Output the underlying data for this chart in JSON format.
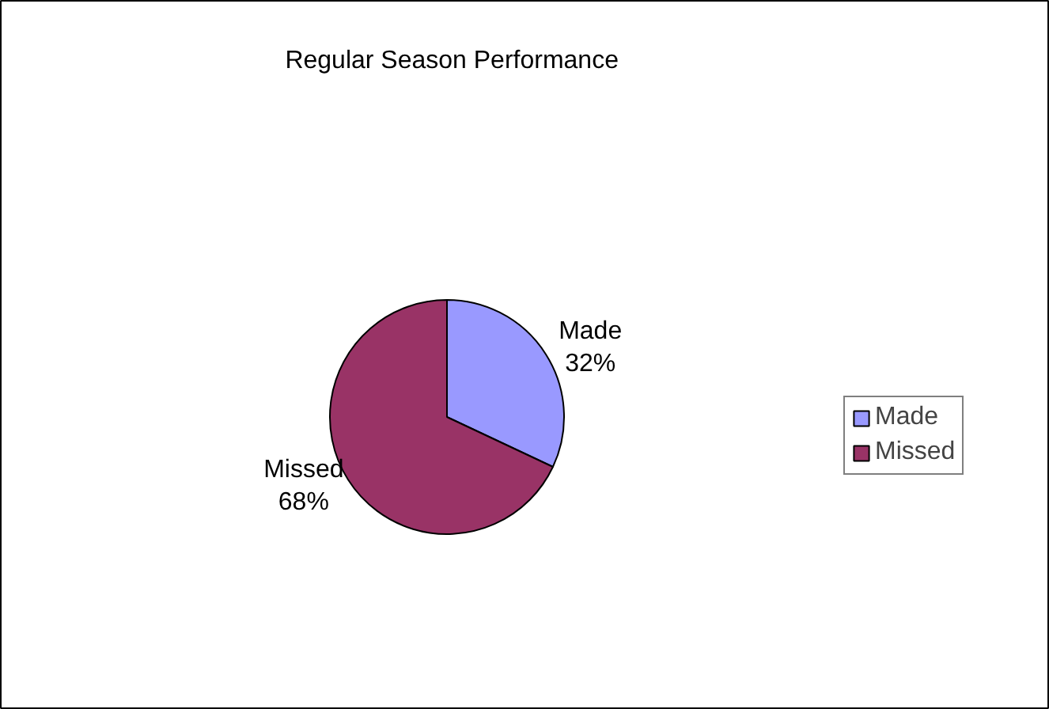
{
  "chart_data": {
    "type": "pie",
    "title": "Regular Season Performance",
    "categories": [
      "Made",
      "Missed"
    ],
    "values": [
      32,
      68
    ],
    "colors": [
      "#9999ff",
      "#993366"
    ],
    "value_labels": [
      "32%",
      "68%"
    ],
    "legend": "right"
  }
}
